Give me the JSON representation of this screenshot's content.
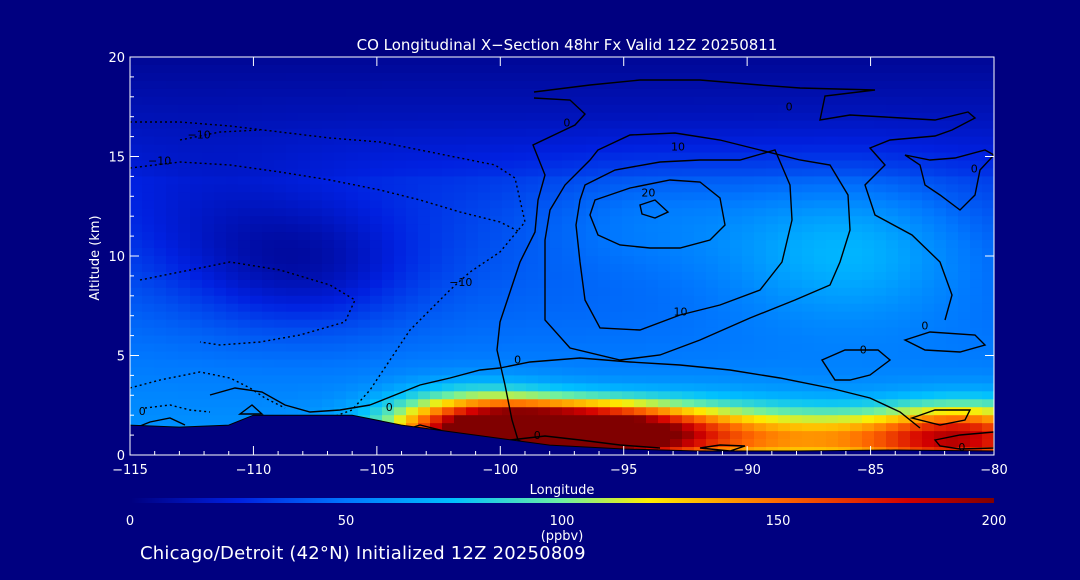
{
  "chart_data": {
    "type": "heatmap",
    "title": "CO Longitudinal X−Section 48hr  Fx Valid 12Z 20250811",
    "xlabel": "Longitude",
    "ylabel": "Altitude (km)",
    "xlim": [
      -115,
      -80
    ],
    "ylim": [
      0,
      20
    ],
    "x_ticks": [
      {
        "value": -115,
        "label": "−115"
      },
      {
        "value": -110,
        "label": "−110"
      },
      {
        "value": -105,
        "label": "−105"
      },
      {
        "value": -100,
        "label": "−100"
      },
      {
        "value": -95,
        "label": "−95"
      },
      {
        "value": -90,
        "label": "−90"
      },
      {
        "value": -85,
        "label": "−85"
      },
      {
        "value": -80,
        "label": "−80"
      }
    ],
    "y_ticks": [
      {
        "value": 0,
        "label": "0"
      },
      {
        "value": 5,
        "label": "5"
      },
      {
        "value": 10,
        "label": "10"
      },
      {
        "value": 15,
        "label": "15"
      },
      {
        "value": 20,
        "label": "20"
      }
    ],
    "colorbar": {
      "min": 0,
      "max": 200,
      "unit": "(ppbv)",
      "ticks": [
        {
          "value": 0,
          "label": "0"
        },
        {
          "value": 50,
          "label": "50"
        },
        {
          "value": 100,
          "label": "100"
        },
        {
          "value": 150,
          "label": "150"
        },
        {
          "value": 200,
          "label": "200"
        }
      ],
      "stops": [
        {
          "value": 0,
          "color": "#00007f"
        },
        {
          "value": 25,
          "color": "#0020e0"
        },
        {
          "value": 50,
          "color": "#0078ff"
        },
        {
          "value": 75,
          "color": "#00c0ff"
        },
        {
          "value": 100,
          "color": "#6ff0a0"
        },
        {
          "value": 120,
          "color": "#ffee00"
        },
        {
          "value": 150,
          "color": "#ff6a00"
        },
        {
          "value": 180,
          "color": "#d40000"
        },
        {
          "value": 200,
          "color": "#800000"
        }
      ]
    },
    "terrain": [
      {
        "lon": -115,
        "alt": 1.5
      },
      {
        "lon": -113,
        "alt": 1.4
      },
      {
        "lon": -111,
        "alt": 1.5
      },
      {
        "lon": -110,
        "alt": 2.0
      },
      {
        "lon": -108,
        "alt": 2.0
      },
      {
        "lon": -106,
        "alt": 2.0
      },
      {
        "lon": -104,
        "alt": 1.5
      },
      {
        "lon": -101,
        "alt": 1.0
      },
      {
        "lon": -98,
        "alt": 0.5
      },
      {
        "lon": -95,
        "alt": 0.3
      },
      {
        "lon": -92,
        "alt": 0.2
      },
      {
        "lon": -88,
        "alt": 0.2
      },
      {
        "lon": -84,
        "alt": 0.25
      },
      {
        "lon": -80,
        "alt": 0.2
      }
    ],
    "field_blobs": [
      {
        "lon": -97,
        "alt": 1.1,
        "value": 185,
        "slon": 3.4,
        "salt": 0.95
      },
      {
        "lon": -101,
        "alt": 1.4,
        "value": 95,
        "slon": 2.5,
        "salt": 1.2
      },
      {
        "lon": -85,
        "alt": 0.8,
        "value": 60,
        "slon": 4.5,
        "salt": 1.0
      },
      {
        "lon": -81,
        "alt": 0.9,
        "value": 85,
        "slon": 2.5,
        "salt": 1.2
      },
      {
        "lon": -92,
        "alt": 0.9,
        "value": 45,
        "slon": 4.0,
        "salt": 1.3
      },
      {
        "lon": -86,
        "alt": 10.5,
        "value": 32,
        "slon": 3.5,
        "salt": 2.5
      },
      {
        "lon": -94,
        "alt": 12.0,
        "value": 15,
        "slon": 3.5,
        "salt": 2.0
      },
      {
        "lon": -108,
        "alt": 9.5,
        "value": -28,
        "slon": 3.2,
        "salt": 2.2
      },
      {
        "lon": -112,
        "alt": 12.0,
        "value": -10,
        "slon": 3.0,
        "salt": 2.5
      }
    ],
    "contour_labels": [
      {
        "lon": -97.3,
        "alt": 16.5,
        "text": "0"
      },
      {
        "lon": -88.3,
        "alt": 17.3,
        "text": "0"
      },
      {
        "lon": -94.0,
        "alt": 13.0,
        "text": "20"
      },
      {
        "lon": -92.8,
        "alt": 15.3,
        "text": "10"
      },
      {
        "lon": -92.7,
        "alt": 7.0,
        "text": "10"
      },
      {
        "lon": -99.3,
        "alt": 4.6,
        "text": "0"
      },
      {
        "lon": -98.5,
        "alt": 0.8,
        "text": "0"
      },
      {
        "lon": -82.8,
        "alt": 6.3,
        "text": "0"
      },
      {
        "lon": -80.8,
        "alt": 14.2,
        "text": "0"
      },
      {
        "lon": -85.3,
        "alt": 5.1,
        "text": "0"
      },
      {
        "lon": -81.3,
        "alt": 0.2,
        "text": "0"
      },
      {
        "lon": -104.5,
        "alt": 2.2,
        "text": "0"
      },
      {
        "lon": -114.5,
        "alt": 2.0,
        "text": "0"
      },
      {
        "lon": -112.2,
        "alt": 15.9,
        "text": "−10"
      },
      {
        "lon": -113.8,
        "alt": 14.6,
        "text": "−10"
      },
      {
        "lon": -101.6,
        "alt": 8.5,
        "text": "−10"
      }
    ]
  },
  "footer": "Chicago/Detroit (42°N) Initialized 12Z 20250809"
}
